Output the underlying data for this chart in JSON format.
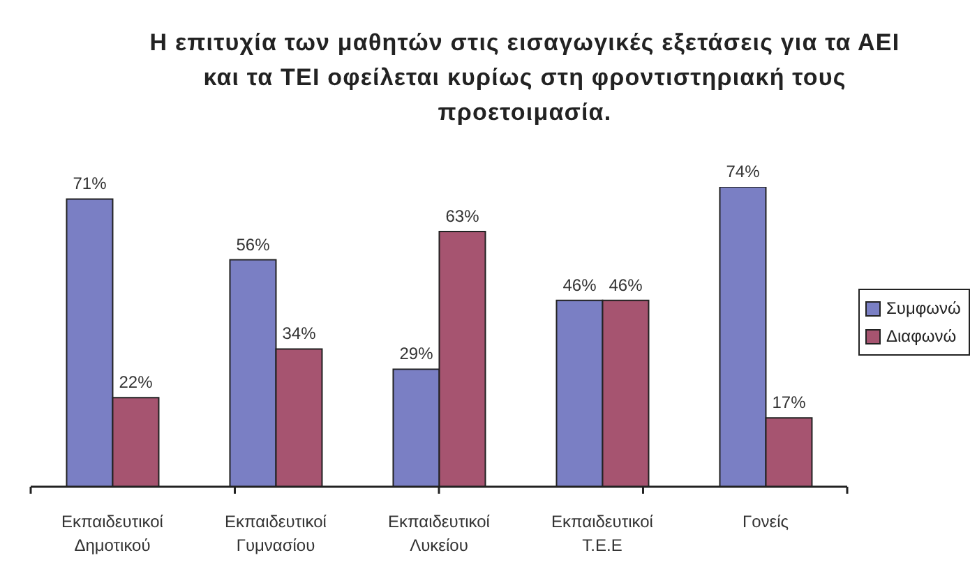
{
  "chart_data": {
    "type": "bar",
    "title": "Η επιτυχία των μαθητών στις εισαγωγικές εξετάσεις για τα ΑΕΙ και τα ΤΕΙ οφείλεται κυρίως στη φροντιστηριακή τους προετοιμασία.",
    "categories": [
      "Εκπαιδευτικοί Δημοτικού",
      "Εκπαιδευτικοί Γυμνασίου",
      "Εκπαιδευτικοί Λυκείου",
      "Εκπαιδευτικοί Τ.Ε.Ε",
      "Γονείς"
    ],
    "series": [
      {
        "name": "Συμφωνώ",
        "color": "#7a7fc4",
        "values": [
          71,
          56,
          29,
          46,
          74
        ],
        "value_labels": [
          "71%",
          "56%",
          "29%",
          "46%",
          "74%"
        ]
      },
      {
        "name": "Διαφωνώ",
        "color": "#a65470",
        "values": [
          22,
          34,
          63,
          46,
          17
        ],
        "value_labels": [
          "22%",
          "34%",
          "63%",
          "46%",
          "17%"
        ]
      }
    ],
    "legend": "right",
    "tick_labels": "x"
  }
}
